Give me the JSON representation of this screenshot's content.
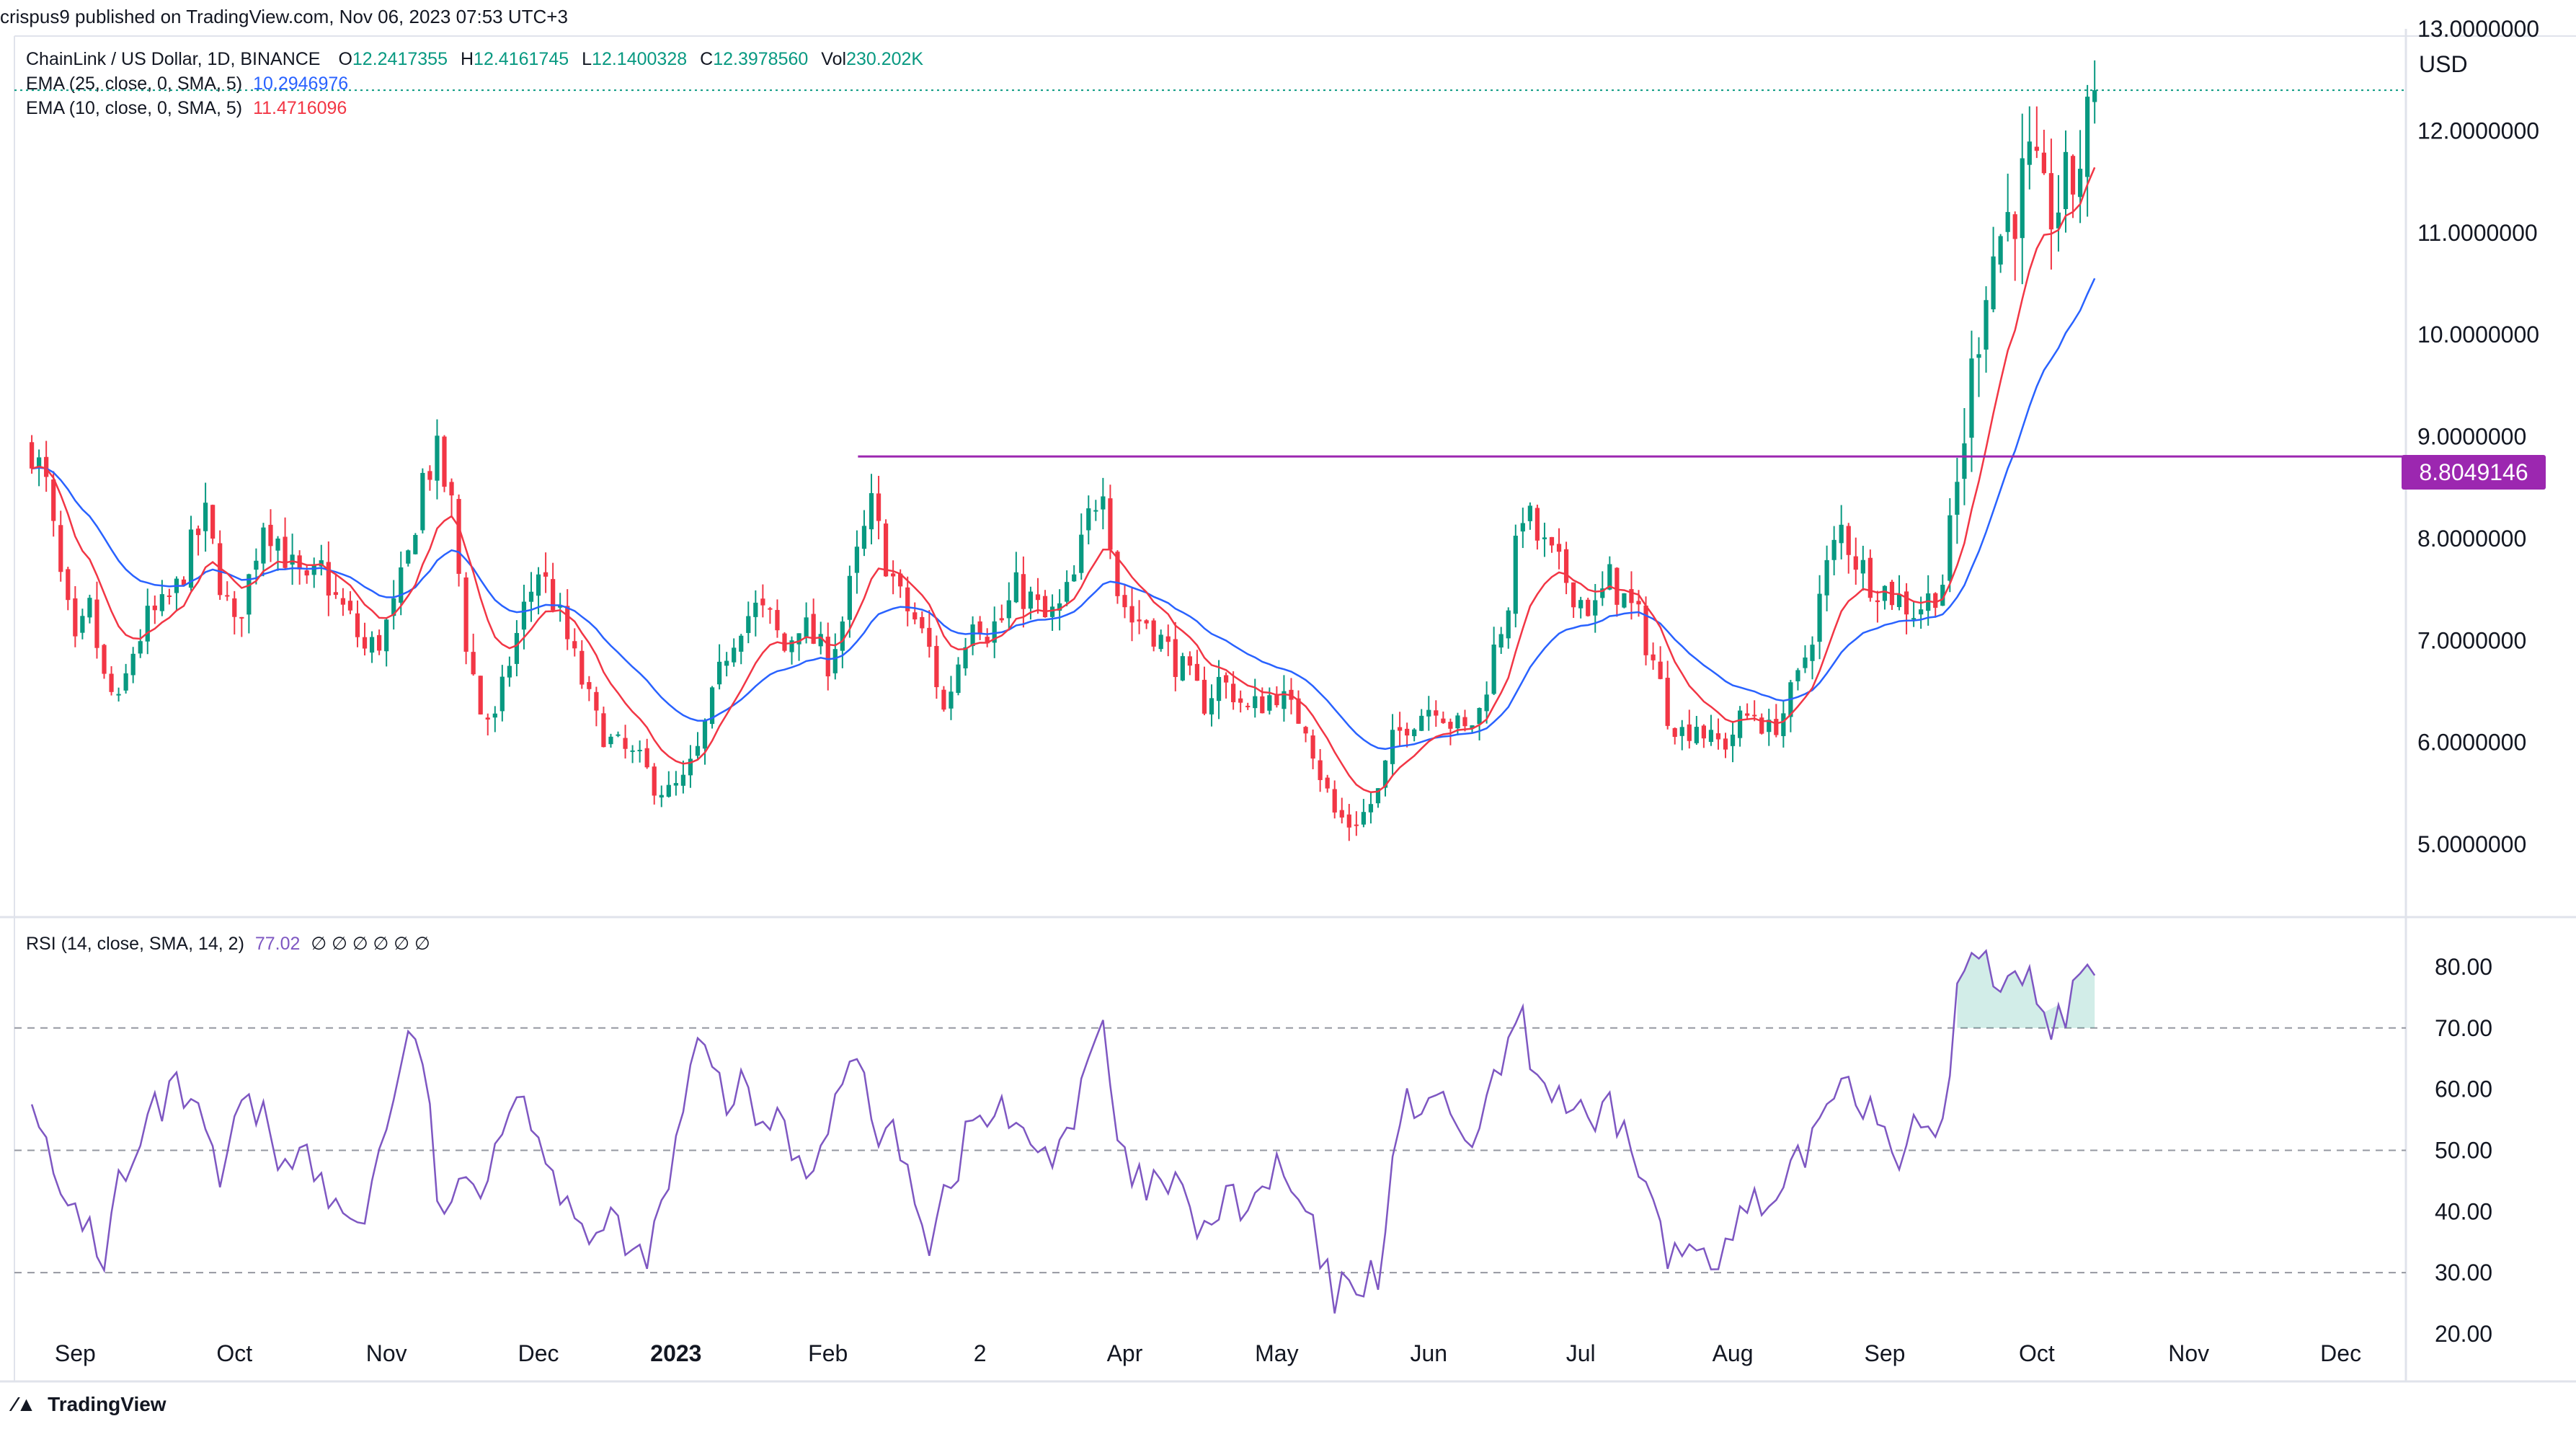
{
  "header": {
    "attribution": "crispus9 published on TradingView.com, Nov 06, 2023 07:53 UTC+3"
  },
  "legend": {
    "symbol": "ChainLink / US Dollar, 1D, BINANCE",
    "ohlc": [
      {
        "k": "O",
        "v": "12.2417355"
      },
      {
        "k": "H",
        "v": "12.4161745"
      },
      {
        "k": "L",
        "v": "12.1400328"
      },
      {
        "k": "C",
        "v": "12.3978560"
      },
      {
        "k": "Vol",
        "v": "230.202K"
      }
    ],
    "ema25": {
      "label": "EMA (25, close, 0, SMA, 5)",
      "value": "10.2946976",
      "color": "#2962ff"
    },
    "ema10": {
      "label": "EMA (10, close, 0, SMA, 5)",
      "value": "11.4716096",
      "color": "#f23645"
    },
    "rsi": {
      "label": "RSI (14, close, SMA, 14, 2)",
      "value": "77.02",
      "extra": "∅ ∅ ∅ ∅ ∅ ∅",
      "color": "#7e57c2"
    }
  },
  "currency_button": "USD",
  "price_label": "8.8049146",
  "footer_logo": "TradingView",
  "icons": {
    "logo": "tradingview-logo-icon"
  },
  "colors": {
    "up": "#089981",
    "down": "#f23645",
    "ema25": "#2962ff",
    "ema10": "#f23645",
    "rsi": "#7e57c2",
    "resistance": "#9c27b0"
  },
  "chart_data": {
    "type": "candlestick",
    "symbol": "LINKUSD",
    "timeframe": "1D",
    "price_axis": {
      "ticks": [
        "13.0000000",
        "12.0000000",
        "11.0000000",
        "10.0000000",
        "9.0000000",
        "8.0000000",
        "7.0000000",
        "6.0000000",
        "5.0000000"
      ],
      "ylim": [
        4.3,
        13.0
      ]
    },
    "rsi_axis": {
      "ticks": [
        "80.00",
        "70.00",
        "60.00",
        "50.00",
        "40.00",
        "30.00",
        "20.00"
      ],
      "ylim": [
        20,
        86
      ],
      "bands": [
        70,
        50,
        30
      ]
    },
    "x_labels": [
      "Sep",
      "Oct",
      "Nov",
      "Dec",
      "2023",
      "Feb",
      "2",
      "Apr",
      "May",
      "Jun",
      "Jul",
      "Aug",
      "Sep",
      "Oct",
      "Nov",
      "Dec"
    ],
    "resistance_level": 8.8049146,
    "last_close": 12.397856,
    "price_path": [
      [
        0,
        8.9
      ],
      [
        2,
        8.5
      ],
      [
        4,
        7.6
      ],
      [
        6,
        6.9
      ],
      [
        8,
        7.3
      ],
      [
        10,
        6.6
      ],
      [
        12,
        6.35
      ],
      [
        14,
        6.9
      ],
      [
        16,
        7.2
      ],
      [
        18,
        7.3
      ],
      [
        20,
        7.5
      ],
      [
        22,
        7.9
      ],
      [
        24,
        8.2
      ],
      [
        26,
        7.6
      ],
      [
        28,
        7.1
      ],
      [
        30,
        7.6
      ],
      [
        32,
        8.2
      ],
      [
        34,
        8.0
      ],
      [
        36,
        7.7
      ],
      [
        38,
        7.5
      ],
      [
        40,
        7.7
      ],
      [
        42,
        7.4
      ],
      [
        44,
        7.2
      ],
      [
        46,
        6.9
      ],
      [
        48,
        7.0
      ],
      [
        50,
        7.3
      ],
      [
        52,
        7.8
      ],
      [
        54,
        8.6
      ],
      [
        56,
        8.8
      ],
      [
        58,
        8.3
      ],
      [
        60,
        7.0
      ],
      [
        62,
        6.3
      ],
      [
        64,
        6.2
      ],
      [
        66,
        6.8
      ],
      [
        68,
        7.3
      ],
      [
        70,
        7.7
      ],
      [
        72,
        7.4
      ],
      [
        74,
        7.0
      ],
      [
        76,
        6.6
      ],
      [
        78,
        6.2
      ],
      [
        80,
        6.0
      ],
      [
        82,
        5.9
      ],
      [
        84,
        5.8
      ],
      [
        86,
        5.6
      ],
      [
        88,
        5.5
      ],
      [
        90,
        5.6
      ],
      [
        92,
        5.9
      ],
      [
        94,
        6.4
      ],
      [
        96,
        6.9
      ],
      [
        98,
        7.2
      ],
      [
        100,
        7.3
      ],
      [
        102,
        7.2
      ],
      [
        104,
        6.9
      ],
      [
        106,
        7.2
      ],
      [
        108,
        7.0
      ],
      [
        110,
        6.8
      ],
      [
        112,
        7.2
      ],
      [
        114,
        7.8
      ],
      [
        116,
        8.3
      ],
      [
        118,
        7.8
      ],
      [
        120,
        7.4
      ],
      [
        122,
        7.2
      ],
      [
        124,
        6.9
      ],
      [
        126,
        6.3
      ],
      [
        128,
        6.8
      ],
      [
        130,
        7.3
      ],
      [
        132,
        7.1
      ],
      [
        134,
        7.2
      ],
      [
        136,
        7.5
      ],
      [
        138,
        7.4
      ],
      [
        140,
        7.2
      ],
      [
        142,
        7.3
      ],
      [
        144,
        7.6
      ],
      [
        146,
        8.2
      ],
      [
        148,
        8.6
      ],
      [
        150,
        7.5
      ],
      [
        152,
        7.2
      ],
      [
        154,
        7.2
      ],
      [
        156,
        7.0
      ],
      [
        158,
        6.8
      ],
      [
        160,
        6.6
      ],
      [
        162,
        6.4
      ],
      [
        164,
        6.6
      ],
      [
        166,
        6.5
      ],
      [
        168,
        6.3
      ],
      [
        170,
        6.4
      ],
      [
        172,
        6.5
      ],
      [
        174,
        6.3
      ],
      [
        176,
        6.2
      ],
      [
        178,
        5.7
      ],
      [
        180,
        5.3
      ],
      [
        182,
        5.2
      ],
      [
        184,
        5.3
      ],
      [
        186,
        5.5
      ],
      [
        188,
        6.0
      ],
      [
        190,
        6.2
      ],
      [
        192,
        6.3
      ],
      [
        194,
        6.4
      ],
      [
        196,
        6.2
      ],
      [
        198,
        6.1
      ],
      [
        200,
        6.3
      ],
      [
        202,
        6.9
      ],
      [
        204,
        7.4
      ],
      [
        206,
        8.3
      ],
      [
        208,
        8.0
      ],
      [
        210,
        7.8
      ],
      [
        212,
        7.6
      ],
      [
        214,
        7.4
      ],
      [
        216,
        7.3
      ],
      [
        218,
        7.6
      ],
      [
        220,
        7.4
      ],
      [
        222,
        7.2
      ],
      [
        224,
        6.8
      ],
      [
        226,
        6.3
      ],
      [
        228,
        6.1
      ],
      [
        230,
        6.2
      ],
      [
        232,
        6.0
      ],
      [
        234,
        6.0
      ],
      [
        236,
        6.2
      ],
      [
        238,
        6.3
      ],
      [
        240,
        6.1
      ],
      [
        242,
        6.3
      ],
      [
        244,
        6.6
      ],
      [
        246,
        7.1
      ],
      [
        248,
        7.7
      ],
      [
        250,
        8.1
      ],
      [
        252,
        7.8
      ],
      [
        254,
        7.6
      ],
      [
        256,
        7.5
      ],
      [
        258,
        7.4
      ],
      [
        260,
        7.3
      ],
      [
        262,
        7.4
      ],
      [
        264,
        7.6
      ],
      [
        266,
        8.5
      ],
      [
        268,
        9.6
      ],
      [
        270,
        10.6
      ],
      [
        272,
        11.0
      ],
      [
        274,
        11.3
      ],
      [
        276,
        11.6
      ],
      [
        278,
        11.2
      ],
      [
        280,
        11.3
      ],
      [
        282,
        11.5
      ],
      [
        284,
        12.0
      ],
      [
        285,
        12.4
      ]
    ],
    "rsi_path": [
      [
        0,
        61
      ],
      [
        2,
        50
      ],
      [
        4,
        40
      ],
      [
        6,
        41
      ],
      [
        8,
        37
      ],
      [
        10,
        32
      ],
      [
        12,
        45
      ],
      [
        14,
        46
      ],
      [
        16,
        55
      ],
      [
        18,
        57
      ],
      [
        20,
        60
      ],
      [
        22,
        57
      ],
      [
        24,
        52
      ],
      [
        26,
        44
      ],
      [
        28,
        54
      ],
      [
        30,
        57
      ],
      [
        32,
        55
      ],
      [
        34,
        49
      ],
      [
        36,
        50
      ],
      [
        38,
        49
      ],
      [
        40,
        44
      ],
      [
        42,
        40
      ],
      [
        44,
        39
      ],
      [
        46,
        40
      ],
      [
        48,
        49
      ],
      [
        50,
        60
      ],
      [
        52,
        67
      ],
      [
        54,
        66
      ],
      [
        56,
        43
      ],
      [
        58,
        40
      ],
      [
        60,
        44
      ],
      [
        62,
        45
      ],
      [
        64,
        52
      ],
      [
        66,
        57
      ],
      [
        68,
        60
      ],
      [
        70,
        52
      ],
      [
        72,
        45
      ],
      [
        74,
        44
      ],
      [
        76,
        38
      ],
      [
        78,
        36
      ],
      [
        80,
        38
      ],
      [
        82,
        34
      ],
      [
        84,
        32
      ],
      [
        86,
        36
      ],
      [
        88,
        44
      ],
      [
        90,
        57
      ],
      [
        92,
        67
      ],
      [
        94,
        63
      ],
      [
        96,
        58
      ],
      [
        98,
        60
      ],
      [
        100,
        55
      ],
      [
        102,
        55
      ],
      [
        104,
        54
      ],
      [
        106,
        48
      ],
      [
        108,
        47
      ],
      [
        110,
        56
      ],
      [
        112,
        60
      ],
      [
        114,
        66
      ],
      [
        116,
        55
      ],
      [
        118,
        52
      ],
      [
        120,
        51
      ],
      [
        122,
        44
      ],
      [
        124,
        35
      ],
      [
        126,
        43
      ],
      [
        128,
        48
      ],
      [
        130,
        55
      ],
      [
        132,
        55
      ],
      [
        134,
        57
      ],
      [
        136,
        52
      ],
      [
        138,
        52
      ],
      [
        140,
        49
      ],
      [
        142,
        52
      ],
      [
        144,
        55
      ],
      [
        146,
        63
      ],
      [
        148,
        71
      ],
      [
        150,
        50
      ],
      [
        152,
        45
      ],
      [
        154,
        44
      ],
      [
        156,
        44
      ],
      [
        158,
        44
      ],
      [
        160,
        39
      ],
      [
        162,
        37
      ],
      [
        164,
        40
      ],
      [
        166,
        42
      ],
      [
        168,
        40
      ],
      [
        170,
        43
      ],
      [
        172,
        47
      ],
      [
        174,
        43
      ],
      [
        176,
        40
      ],
      [
        178,
        32
      ],
      [
        180,
        26
      ],
      [
        182,
        28
      ],
      [
        184,
        29
      ],
      [
        186,
        30
      ],
      [
        188,
        48
      ],
      [
        190,
        57
      ],
      [
        192,
        58
      ],
      [
        194,
        60
      ],
      [
        196,
        53
      ],
      [
        198,
        52
      ],
      [
        200,
        53
      ],
      [
        202,
        60
      ],
      [
        204,
        68
      ],
      [
        206,
        70
      ],
      [
        208,
        62
      ],
      [
        210,
        60
      ],
      [
        212,
        58
      ],
      [
        214,
        55
      ],
      [
        216,
        53
      ],
      [
        218,
        56
      ],
      [
        220,
        53
      ],
      [
        222,
        48
      ],
      [
        224,
        41
      ],
      [
        226,
        32
      ],
      [
        228,
        33
      ],
      [
        230,
        35
      ],
      [
        232,
        34
      ],
      [
        234,
        34
      ],
      [
        236,
        38
      ],
      [
        238,
        42
      ],
      [
        240,
        38
      ],
      [
        242,
        42
      ],
      [
        244,
        48
      ],
      [
        246,
        52
      ],
      [
        248,
        58
      ],
      [
        250,
        63
      ],
      [
        252,
        60
      ],
      [
        254,
        57
      ],
      [
        256,
        54
      ],
      [
        258,
        50
      ],
      [
        260,
        53
      ],
      [
        262,
        51
      ],
      [
        264,
        55
      ],
      [
        266,
        75
      ],
      [
        268,
        82
      ],
      [
        270,
        80
      ],
      [
        272,
        78
      ],
      [
        274,
        80
      ],
      [
        276,
        79
      ],
      [
        278,
        70
      ],
      [
        280,
        72
      ],
      [
        282,
        75
      ],
      [
        284,
        77
      ]
    ]
  }
}
